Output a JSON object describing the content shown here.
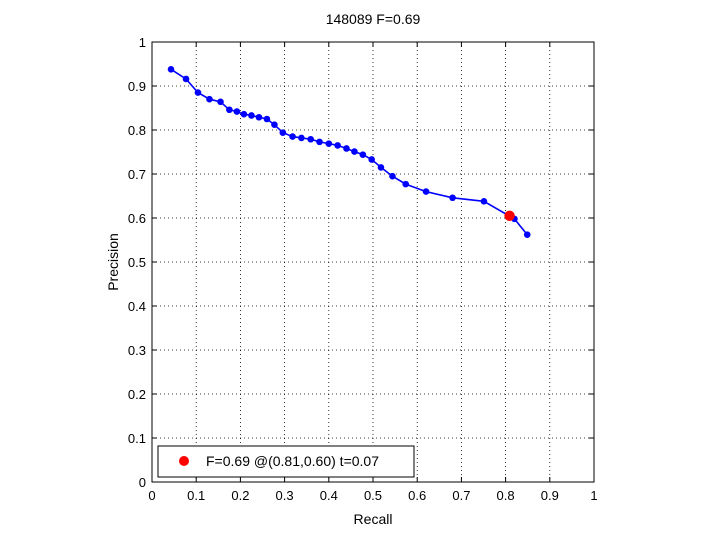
{
  "chart_data": {
    "type": "line",
    "title": "148089 F=0.69",
    "xlabel": "Recall",
    "ylabel": "Precision",
    "xlim": [
      0,
      1
    ],
    "ylim": [
      0,
      1
    ],
    "grid": true,
    "x_ticks": [
      "0",
      "0.1",
      "0.2",
      "0.3",
      "0.4",
      "0.5",
      "0.6",
      "0.7",
      "0.8",
      "0.9",
      "1"
    ],
    "y_ticks": [
      "0",
      "0.1",
      "0.2",
      "0.3",
      "0.4",
      "0.5",
      "0.6",
      "0.7",
      "0.8",
      "0.9",
      "1"
    ],
    "series": [
      {
        "color": "#0000ff",
        "points": [
          [
            0.043,
            0.938
          ],
          [
            0.077,
            0.916
          ],
          [
            0.104,
            0.885
          ],
          [
            0.13,
            0.87
          ],
          [
            0.155,
            0.864
          ],
          [
            0.175,
            0.846
          ],
          [
            0.192,
            0.842
          ],
          [
            0.208,
            0.836
          ],
          [
            0.225,
            0.833
          ],
          [
            0.242,
            0.829
          ],
          [
            0.26,
            0.825
          ],
          [
            0.277,
            0.812
          ],
          [
            0.296,
            0.794
          ],
          [
            0.318,
            0.785
          ],
          [
            0.338,
            0.782
          ],
          [
            0.359,
            0.779
          ],
          [
            0.379,
            0.773
          ],
          [
            0.4,
            0.769
          ],
          [
            0.42,
            0.765
          ],
          [
            0.44,
            0.758
          ],
          [
            0.458,
            0.751
          ],
          [
            0.477,
            0.744
          ],
          [
            0.497,
            0.733
          ],
          [
            0.518,
            0.715
          ],
          [
            0.544,
            0.695
          ],
          [
            0.574,
            0.677
          ],
          [
            0.62,
            0.66
          ],
          [
            0.68,
            0.646
          ],
          [
            0.751,
            0.638
          ],
          [
            0.82,
            0.598
          ],
          [
            0.849,
            0.562
          ]
        ]
      }
    ],
    "highlight": {
      "color": "#ff0000",
      "point": [
        0.809,
        0.605
      ]
    },
    "legend": {
      "text": "F=0.69 @(0.81,0.60) t=0.07",
      "placement": "bottom-left"
    }
  }
}
